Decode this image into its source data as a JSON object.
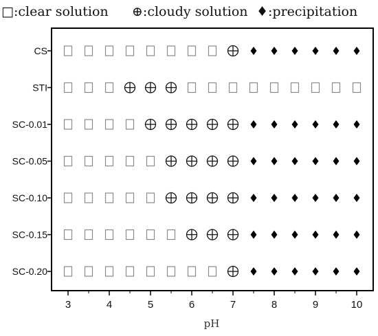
{
  "chart_data": {
    "type": "scatter",
    "xlabel": "pH",
    "ylabel": "",
    "x_ticks": [
      "3",
      "4",
      "5",
      "6",
      "7",
      "8",
      "9",
      "10"
    ],
    "xlim": [
      2.6,
      10.4
    ],
    "x": [
      3,
      3.5,
      4,
      4.5,
      5,
      5.5,
      6,
      6.5,
      7,
      7.5,
      8,
      8.5,
      9,
      9.5,
      10
    ],
    "legend": {
      "placement": "top",
      "entries": [
        {
          "state": "clear",
          "label": "□:clear solution"
        },
        {
          "state": "cloudy",
          "label": "⊕:cloudy solution"
        },
        {
          "state": "precipitation",
          "label": "♦:precipitation"
        }
      ]
    },
    "rows": [
      {
        "label": "CS",
        "states": [
          "clear",
          "clear",
          "clear",
          "clear",
          "clear",
          "clear",
          "clear",
          "clear",
          "cloudy",
          "precipitation",
          "precipitation",
          "precipitation",
          "precipitation",
          "precipitation",
          "precipitation"
        ]
      },
      {
        "label": "STI",
        "states": [
          "clear",
          "clear",
          "clear",
          "cloudy",
          "cloudy",
          "cloudy",
          "clear",
          "clear",
          "clear",
          "clear",
          "clear",
          "clear",
          "clear",
          "clear",
          "clear"
        ]
      },
      {
        "label": "SC-0.01",
        "states": [
          "clear",
          "clear",
          "clear",
          "clear",
          "cloudy",
          "cloudy",
          "cloudy",
          "cloudy",
          "cloudy",
          "precipitation",
          "precipitation",
          "precipitation",
          "precipitation",
          "precipitation",
          "precipitation"
        ]
      },
      {
        "label": "SC-0.05",
        "states": [
          "clear",
          "clear",
          "clear",
          "clear",
          "clear",
          "cloudy",
          "cloudy",
          "cloudy",
          "cloudy",
          "precipitation",
          "precipitation",
          "precipitation",
          "precipitation",
          "precipitation",
          "precipitation"
        ]
      },
      {
        "label": "SC-0.10",
        "states": [
          "clear",
          "clear",
          "clear",
          "clear",
          "clear",
          "cloudy",
          "cloudy",
          "cloudy",
          "cloudy",
          "precipitation",
          "precipitation",
          "precipitation",
          "precipitation",
          "precipitation",
          "precipitation"
        ]
      },
      {
        "label": "SC-0.15",
        "states": [
          "clear",
          "clear",
          "clear",
          "clear",
          "clear",
          "clear",
          "cloudy",
          "cloudy",
          "cloudy",
          "precipitation",
          "precipitation",
          "precipitation",
          "precipitation",
          "precipitation",
          "precipitation"
        ]
      },
      {
        "label": "SC-0.20",
        "states": [
          "clear",
          "clear",
          "clear",
          "clear",
          "clear",
          "clear",
          "clear",
          "clear",
          "cloudy",
          "precipitation",
          "precipitation",
          "precipitation",
          "precipitation",
          "precipitation",
          "precipitation"
        ]
      }
    ],
    "colors": {
      "clear_marker": "#8a8a8a",
      "cloudy_marker": "#111111",
      "precip_marker": "#000000",
      "frame": "#000000"
    }
  }
}
